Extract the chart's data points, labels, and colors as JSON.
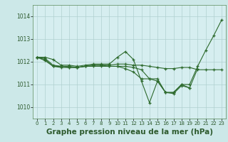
{
  "background_color": "#cce8e8",
  "plot_bg_color": "#d6eef0",
  "grid_color": "#b0d0d0",
  "line_color": "#2d6a2d",
  "marker_color": "#2d6a2d",
  "xlabel": "Graphe pression niveau de la mer (hPa)",
  "xlabel_fontsize": 7.5,
  "xlim": [
    -0.5,
    23.5
  ],
  "ylim": [
    1009.5,
    1014.5
  ],
  "yticks": [
    1010,
    1011,
    1012,
    1013,
    1014
  ],
  "xticks": [
    0,
    1,
    2,
    3,
    4,
    5,
    6,
    7,
    8,
    9,
    10,
    11,
    12,
    13,
    14,
    15,
    16,
    17,
    18,
    19,
    20,
    21,
    22,
    23
  ],
  "series": [
    {
      "x": [
        0,
        1,
        2,
        3,
        4,
        5,
        6,
        7,
        8,
        9,
        10,
        11,
        12,
        13,
        14,
        15,
        16,
        17,
        18,
        19,
        20,
        21,
        22,
        23
      ],
      "y": [
        1012.2,
        1012.2,
        1012.1,
        1011.85,
        1011.85,
        1011.8,
        1011.85,
        1011.9,
        1011.9,
        1011.9,
        1012.2,
        1012.45,
        1012.1,
        1011.15,
        1010.2,
        1011.15,
        1010.65,
        1010.65,
        1011.0,
        1011.0,
        1011.8,
        1012.5,
        1013.15,
        1013.85
      ]
    },
    {
      "x": [
        0,
        1,
        2,
        3,
        4,
        5,
        6,
        7,
        8,
        9,
        10,
        11,
        12,
        13,
        14,
        15,
        16,
        17,
        18,
        19,
        20,
        21,
        22,
        23
      ],
      "y": [
        1012.2,
        1012.15,
        1011.85,
        1011.8,
        1011.8,
        1011.75,
        1011.8,
        1011.85,
        1011.85,
        1011.85,
        1011.9,
        1011.9,
        1011.85,
        1011.85,
        1011.8,
        1011.75,
        1011.7,
        1011.7,
        1011.75,
        1011.75,
        1011.65,
        1011.65,
        1011.65,
        1011.65
      ]
    },
    {
      "x": [
        0,
        1,
        2,
        3,
        4,
        5,
        6,
        7,
        8,
        9,
        10,
        11,
        12,
        13,
        14,
        15,
        16,
        17,
        18,
        19,
        20
      ],
      "y": [
        1012.2,
        1012.1,
        1011.8,
        1011.75,
        1011.75,
        1011.75,
        1011.8,
        1011.85,
        1011.85,
        1011.8,
        1011.8,
        1011.7,
        1011.55,
        1011.25,
        1011.25,
        1011.15,
        1010.65,
        1010.65,
        1011.0,
        1010.85,
        1011.7
      ]
    },
    {
      "x": [
        0,
        1,
        2,
        3,
        4,
        5,
        6,
        7,
        8,
        9,
        10,
        11,
        12,
        13,
        14,
        15,
        16,
        17,
        18,
        19
      ],
      "y": [
        1012.2,
        1012.05,
        1011.8,
        1011.8,
        1011.75,
        1011.75,
        1011.8,
        1011.8,
        1011.8,
        1011.8,
        1011.8,
        1011.8,
        1011.75,
        1011.65,
        1011.25,
        1011.25,
        1010.65,
        1010.6,
        1010.95,
        1010.85
      ]
    }
  ]
}
